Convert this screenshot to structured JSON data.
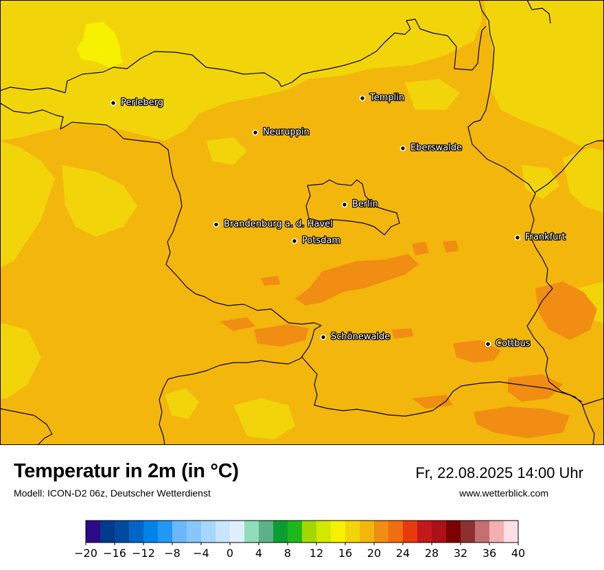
{
  "map": {
    "cities": [
      {
        "name": "Perleberg"
      },
      {
        "name": "Templin"
      },
      {
        "name": "Neuruppin"
      },
      {
        "name": "Eberswalde"
      },
      {
        "name": "Berlin"
      },
      {
        "name": "Brandenburg a. d. Havel"
      },
      {
        "name": "Potsdam"
      },
      {
        "name": "Frankfurt"
      },
      {
        "name": "Schönewalde"
      },
      {
        "name": "Cottbus"
      }
    ],
    "colors": {
      "base": "#f3b60c",
      "cool": "#f2d40a",
      "coolest": "#f5f100",
      "warm": "#f08d12",
      "border": "#000000"
    }
  },
  "header": {
    "title": "Temperatur in 2m (in °C)",
    "subtitle": "Modell: ICON-D2 06z, Deutscher Wetterdienst",
    "datetime": "Fr, 22.08.2025 14:00 Uhr",
    "website": "www.wetterblick.com"
  },
  "legend": {
    "min": -20,
    "max": 40,
    "colors": [
      "#2c0a87",
      "#003a8c",
      "#004aa0",
      "#0064c8",
      "#0083e6",
      "#2198f5",
      "#6ab8fa",
      "#86c6fb",
      "#a8d6fc",
      "#c9e5fd",
      "#e0effd",
      "#8fddb9",
      "#5db188",
      "#0a9e32",
      "#1db81a",
      "#a2d800",
      "#d3e800",
      "#f5f100",
      "#f2d40a",
      "#f3b60c",
      "#f08d12",
      "#f06d10",
      "#e63a0a",
      "#c21a1a",
      "#ac1018",
      "#7c0000",
      "#8c3030",
      "#c47070",
      "#f2b0b0",
      "#ffe0e6"
    ],
    "ticks": [
      "−20",
      "−16",
      "−12",
      "−8",
      "−4",
      "0",
      "4",
      "8",
      "12",
      "16",
      "20",
      "24",
      "28",
      "32",
      "36",
      "40"
    ]
  }
}
